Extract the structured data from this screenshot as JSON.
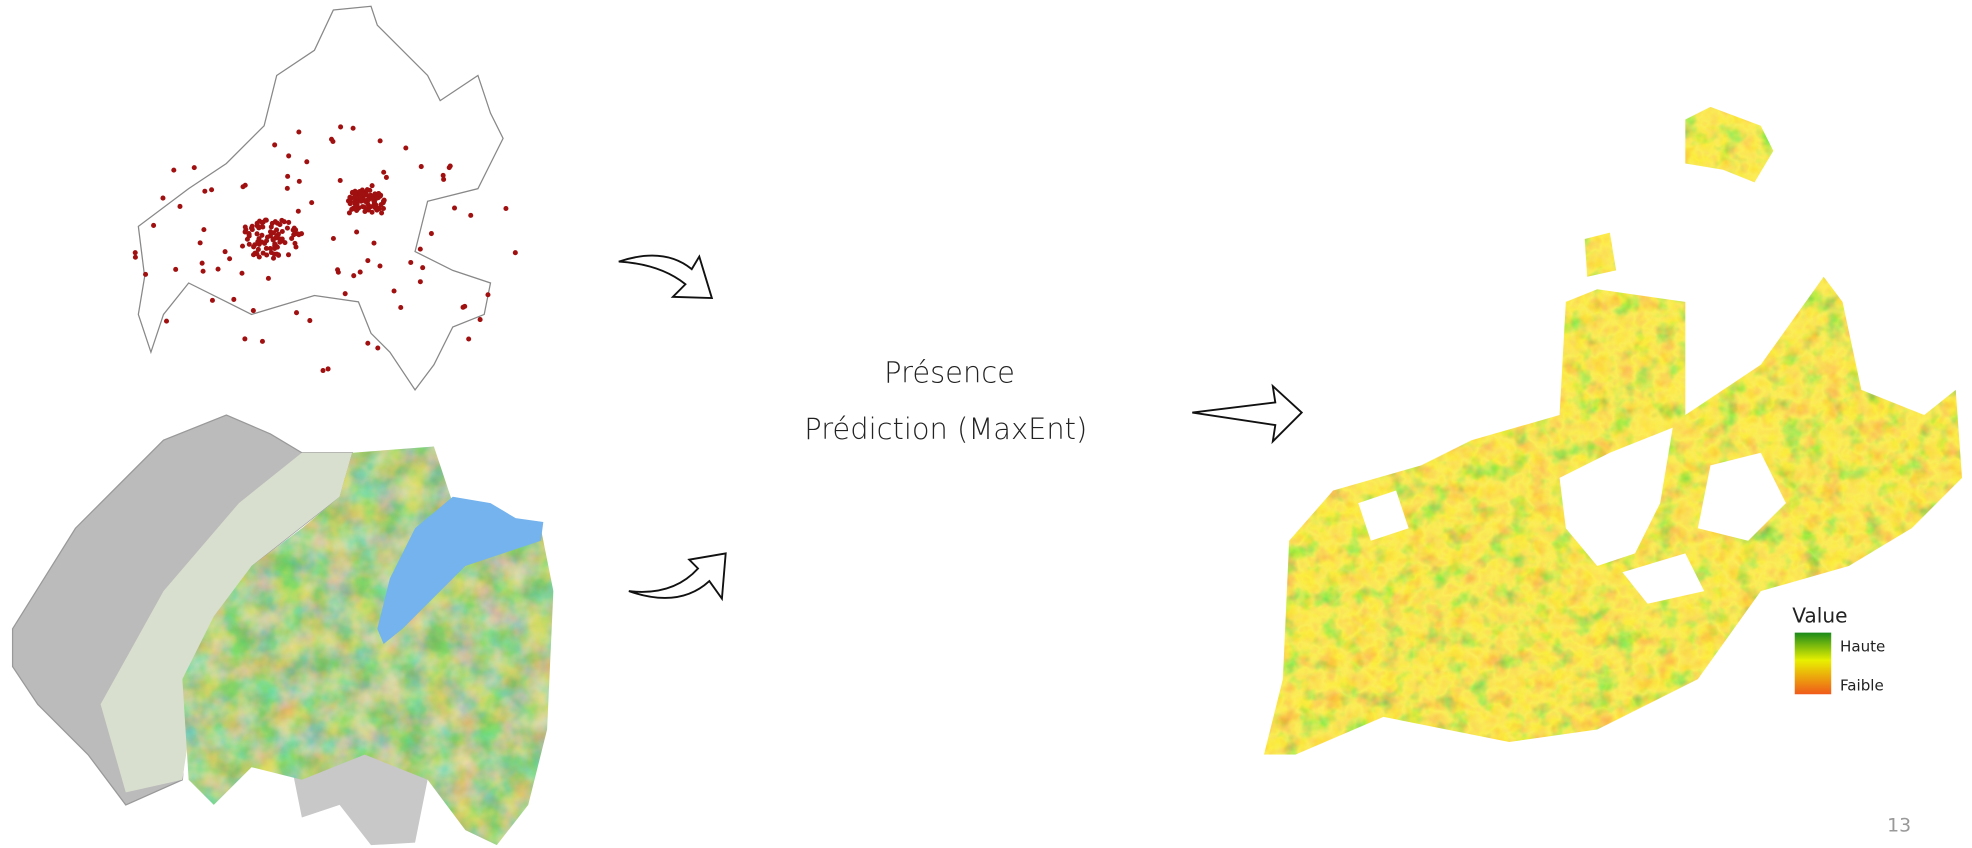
{
  "slide": {
    "center_text": [
      "Présence",
      "Prédiction (MaxEnt)"
    ],
    "legend": {
      "title": "Value",
      "high": "Haute",
      "low": "Faible"
    },
    "page_number": "13"
  }
}
